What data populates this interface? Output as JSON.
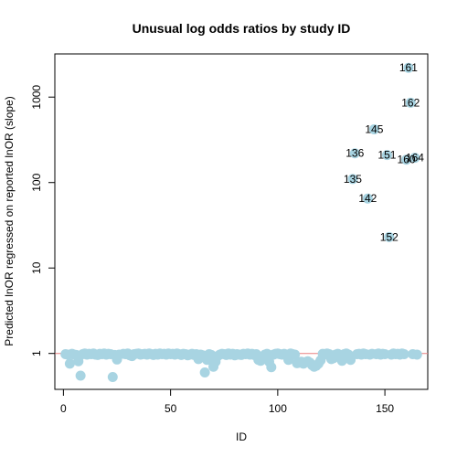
{
  "chart_data": {
    "type": "scatter",
    "title": "Unusual log odds ratios by study ID",
    "xlabel": "ID",
    "ylabel": "Predicted lnOR regressed on reported lnOR (slope)",
    "xlim": [
      -4,
      170
    ],
    "ylim": [
      0.38,
      3200
    ],
    "y_scale": "log",
    "x_ticks": [
      0,
      50,
      100,
      150
    ],
    "x_tick_labels": [
      "0",
      "50",
      "100",
      "150"
    ],
    "y_ticks": [
      1,
      10,
      100,
      1000
    ],
    "y_tick_labels": [
      "1",
      "10",
      "100",
      "1000"
    ],
    "reference_line": {
      "y": 1,
      "color": "#e88080"
    },
    "point_color": "#a8d4e2",
    "grid": false,
    "legend": "none",
    "points": [
      {
        "x": 1,
        "y": 0.98
      },
      {
        "x": 2,
        "y": 0.97
      },
      {
        "x": 3,
        "y": 0.76
      },
      {
        "x": 4,
        "y": 0.99
      },
      {
        "x": 5,
        "y": 0.97
      },
      {
        "x": 6,
        "y": 0.96
      },
      {
        "x": 7,
        "y": 0.81
      },
      {
        "x": 8,
        "y": 0.55
      },
      {
        "x": 9,
        "y": 0.98
      },
      {
        "x": 10,
        "y": 1.0
      },
      {
        "x": 11,
        "y": 0.97
      },
      {
        "x": 12,
        "y": 0.99
      },
      {
        "x": 13,
        "y": 0.98
      },
      {
        "x": 14,
        "y": 1.0
      },
      {
        "x": 15,
        "y": 0.97
      },
      {
        "x": 16,
        "y": 0.96
      },
      {
        "x": 17,
        "y": 0.99
      },
      {
        "x": 18,
        "y": 0.98
      },
      {
        "x": 19,
        "y": 1.0
      },
      {
        "x": 20,
        "y": 0.97
      },
      {
        "x": 21,
        "y": 0.99
      },
      {
        "x": 22,
        "y": 0.98
      },
      {
        "x": 23,
        "y": 0.53
      },
      {
        "x": 24,
        "y": 0.96
      },
      {
        "x": 25,
        "y": 0.85
      },
      {
        "x": 26,
        "y": 0.97
      },
      {
        "x": 28,
        "y": 0.99
      },
      {
        "x": 29,
        "y": 0.98
      },
      {
        "x": 30,
        "y": 1.0
      },
      {
        "x": 31,
        "y": 0.95
      },
      {
        "x": 32,
        "y": 0.93
      },
      {
        "x": 33,
        "y": 0.98
      },
      {
        "x": 34,
        "y": 0.99
      },
      {
        "x": 35,
        "y": 1.0
      },
      {
        "x": 36,
        "y": 0.97
      },
      {
        "x": 37,
        "y": 0.98
      },
      {
        "x": 38,
        "y": 0.99
      },
      {
        "x": 39,
        "y": 0.97
      },
      {
        "x": 40,
        "y": 1.0
      },
      {
        "x": 41,
        "y": 0.98
      },
      {
        "x": 42,
        "y": 0.96
      },
      {
        "x": 43,
        "y": 0.99
      },
      {
        "x": 44,
        "y": 0.97
      },
      {
        "x": 45,
        "y": 1.0
      },
      {
        "x": 46,
        "y": 0.98
      },
      {
        "x": 47,
        "y": 0.99
      },
      {
        "x": 48,
        "y": 0.97
      },
      {
        "x": 49,
        "y": 1.0
      },
      {
        "x": 50,
        "y": 0.98
      },
      {
        "x": 51,
        "y": 0.99
      },
      {
        "x": 52,
        "y": 0.97
      },
      {
        "x": 53,
        "y": 1.0
      },
      {
        "x": 54,
        "y": 0.98
      },
      {
        "x": 55,
        "y": 0.96
      },
      {
        "x": 56,
        "y": 0.99
      },
      {
        "x": 57,
        "y": 0.98
      },
      {
        "x": 58,
        "y": 0.95
      },
      {
        "x": 59,
        "y": 0.97
      },
      {
        "x": 60,
        "y": 0.99
      },
      {
        "x": 61,
        "y": 0.96
      },
      {
        "x": 62,
        "y": 0.98
      },
      {
        "x": 63,
        "y": 0.86
      },
      {
        "x": 64,
        "y": 0.97
      },
      {
        "x": 65,
        "y": 0.95
      },
      {
        "x": 66,
        "y": 0.6
      },
      {
        "x": 67,
        "y": 0.84
      },
      {
        "x": 68,
        "y": 0.98
      },
      {
        "x": 69,
        "y": 0.96
      },
      {
        "x": 70,
        "y": 0.7
      },
      {
        "x": 71,
        "y": 0.8
      },
      {
        "x": 72,
        "y": 0.93
      },
      {
        "x": 73,
        "y": 0.97
      },
      {
        "x": 74,
        "y": 0.99
      },
      {
        "x": 75,
        "y": 0.98
      },
      {
        "x": 76,
        "y": 0.96
      },
      {
        "x": 77,
        "y": 1.0
      },
      {
        "x": 78,
        "y": 0.97
      },
      {
        "x": 79,
        "y": 0.99
      },
      {
        "x": 80,
        "y": 0.95
      },
      {
        "x": 81,
        "y": 0.98
      },
      {
        "x": 82,
        "y": 0.97
      },
      {
        "x": 83,
        "y": 0.96
      },
      {
        "x": 84,
        "y": 0.99
      },
      {
        "x": 85,
        "y": 0.98
      },
      {
        "x": 86,
        "y": 1.0
      },
      {
        "x": 87,
        "y": 0.97
      },
      {
        "x": 88,
        "y": 0.99
      },
      {
        "x": 89,
        "y": 0.96
      },
      {
        "x": 90,
        "y": 0.98
      },
      {
        "x": 91,
        "y": 0.84
      },
      {
        "x": 92,
        "y": 0.82
      },
      {
        "x": 93,
        "y": 0.86
      },
      {
        "x": 94,
        "y": 0.97
      },
      {
        "x": 95,
        "y": 0.99
      },
      {
        "x": 96,
        "y": 0.8
      },
      {
        "x": 97,
        "y": 0.69
      },
      {
        "x": 98,
        "y": 0.97
      },
      {
        "x": 99,
        "y": 0.99
      },
      {
        "x": 100,
        "y": 1.0
      },
      {
        "x": 101,
        "y": 0.98
      },
      {
        "x": 102,
        "y": 0.97
      },
      {
        "x": 103,
        "y": 0.99
      },
      {
        "x": 104,
        "y": 0.96
      },
      {
        "x": 105,
        "y": 0.84
      },
      {
        "x": 106,
        "y": 1.0
      },
      {
        "x": 107,
        "y": 0.98
      },
      {
        "x": 108,
        "y": 0.97
      },
      {
        "x": 109,
        "y": 0.77
      },
      {
        "x": 110,
        "y": 0.78
      },
      {
        "x": 111,
        "y": 0.8
      },
      {
        "x": 112,
        "y": 0.76
      },
      {
        "x": 113,
        "y": 0.79
      },
      {
        "x": 114,
        "y": 0.81
      },
      {
        "x": 115,
        "y": 0.78
      },
      {
        "x": 116,
        "y": 0.73
      },
      {
        "x": 117,
        "y": 0.7
      },
      {
        "x": 118,
        "y": 0.72
      },
      {
        "x": 119,
        "y": 0.76
      },
      {
        "x": 120,
        "y": 0.83
      },
      {
        "x": 121,
        "y": 0.99
      },
      {
        "x": 122,
        "y": 0.97
      },
      {
        "x": 123,
        "y": 1.0
      },
      {
        "x": 124,
        "y": 0.98
      },
      {
        "x": 125,
        "y": 0.86
      },
      {
        "x": 126,
        "y": 0.88
      },
      {
        "x": 127,
        "y": 0.97
      },
      {
        "x": 128,
        "y": 0.99
      },
      {
        "x": 129,
        "y": 0.96
      },
      {
        "x": 130,
        "y": 0.82
      },
      {
        "x": 131,
        "y": 0.98
      },
      {
        "x": 132,
        "y": 1.0
      },
      {
        "x": 133,
        "y": 0.97
      },
      {
        "x": 134,
        "y": 0.84
      },
      {
        "x": 135,
        "y": 110,
        "label": "135"
      },
      {
        "x": 136,
        "y": 220,
        "label": "136"
      },
      {
        "x": 137,
        "y": 0.98
      },
      {
        "x": 138,
        "y": 0.99
      },
      {
        "x": 139,
        "y": 0.97
      },
      {
        "x": 140,
        "y": 1.0
      },
      {
        "x": 141,
        "y": 0.98
      },
      {
        "x": 142,
        "y": 65,
        "label": "142"
      },
      {
        "x": 143,
        "y": 0.97
      },
      {
        "x": 144,
        "y": 0.99
      },
      {
        "x": 145,
        "y": 420,
        "label": "145"
      },
      {
        "x": 146,
        "y": 0.98
      },
      {
        "x": 147,
        "y": 1.0
      },
      {
        "x": 148,
        "y": 0.97
      },
      {
        "x": 149,
        "y": 0.99
      },
      {
        "x": 150,
        "y": 0.98
      },
      {
        "x": 151,
        "y": 210,
        "label": "151"
      },
      {
        "x": 152,
        "y": 23,
        "label": "152"
      },
      {
        "x": 153,
        "y": 0.97
      },
      {
        "x": 154,
        "y": 1.0
      },
      {
        "x": 155,
        "y": 0.98
      },
      {
        "x": 156,
        "y": 0.99
      },
      {
        "x": 157,
        "y": 0.97
      },
      {
        "x": 158,
        "y": 1.0
      },
      {
        "x": 159,
        "y": 0.98
      },
      {
        "x": 160,
        "y": 185,
        "label": "160"
      },
      {
        "x": 161,
        "y": 2200,
        "label": "161"
      },
      {
        "x": 162,
        "y": 860,
        "label": "162"
      },
      {
        "x": 163,
        "y": 0.98
      },
      {
        "x": 164,
        "y": 195,
        "label": "164"
      },
      {
        "x": 165,
        "y": 0.97
      }
    ]
  }
}
